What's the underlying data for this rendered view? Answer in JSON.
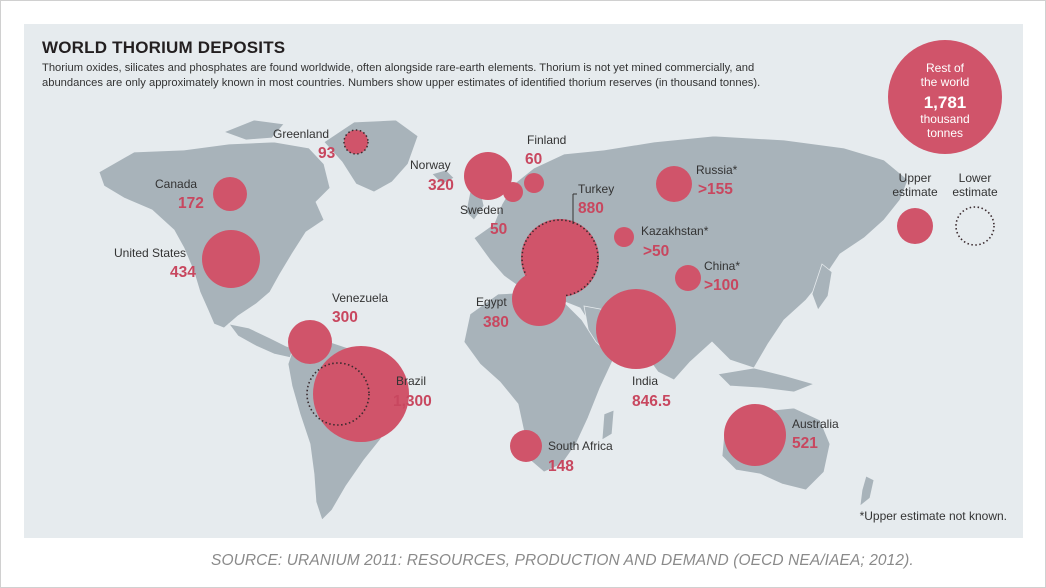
{
  "title": "WORLD THORIUM DEPOSITS",
  "description_lines": [
    "Thorium oxides, silicates and phosphates are found worldwide, often alongside rare-earth elements. Thorium is not yet mined commercially, and",
    "abundances are only approximately known in most countries. Numbers show upper estimates of identified thorium reserves (in thousand tonnes)."
  ],
  "colors": {
    "bubble": "#d0546a",
    "value_text": "#c8475f",
    "land": "#a8b3ba",
    "ocean": "#e6ebee"
  },
  "deposits": [
    {
      "id": "greenland",
      "name": "Greenland",
      "value_label": "93",
      "value": 93,
      "estimate": "lower"
    },
    {
      "id": "canada",
      "name": "Canada",
      "value_label": "172",
      "value": 172,
      "estimate": "upper"
    },
    {
      "id": "united-states",
      "name": "United States",
      "value_label": "434",
      "value": 434,
      "estimate": "upper"
    },
    {
      "id": "venezuela",
      "name": "Venezuela",
      "value_label": "300",
      "value": 300,
      "estimate": "upper"
    },
    {
      "id": "brazil",
      "name": "Brazil",
      "value_label": "1,300",
      "value": 1300,
      "estimate": "upper+lower"
    },
    {
      "id": "norway",
      "name": "Norway",
      "value_label": "320",
      "value": 320,
      "estimate": "upper"
    },
    {
      "id": "finland",
      "name": "Finland",
      "value_label": "60",
      "value": 60,
      "estimate": "upper"
    },
    {
      "id": "sweden",
      "name": "Sweden",
      "value_label": "50",
      "value": 50,
      "estimate": "upper"
    },
    {
      "id": "turkey",
      "name": "Turkey",
      "value_label": "880",
      "value": 880,
      "estimate": "upper+lower"
    },
    {
      "id": "egypt",
      "name": "Egypt",
      "value_label": "380",
      "value": 380,
      "estimate": "upper"
    },
    {
      "id": "russia",
      "name": "Russia*",
      "value_label": ">155",
      "value": 155,
      "estimate": "lower-bound"
    },
    {
      "id": "kazakhstan",
      "name": "Kazakhstan*",
      "value_label": ">50",
      "value": 50,
      "estimate": "lower-bound"
    },
    {
      "id": "china",
      "name": "China*",
      "value_label": ">100",
      "value": 100,
      "estimate": "lower-bound"
    },
    {
      "id": "india",
      "name": "India",
      "value_label": "846.5",
      "value": 846.5,
      "estimate": "upper"
    },
    {
      "id": "south-africa",
      "name": "South Africa",
      "value_label": "148",
      "value": 148,
      "estimate": "upper"
    },
    {
      "id": "australia",
      "name": "Australia",
      "value_label": "521",
      "value": 521,
      "estimate": "upper"
    }
  ],
  "rest_of_world": {
    "line1": "Rest of",
    "line2": "the world",
    "value": "1,781",
    "line4": "thousand",
    "line5": "tonnes"
  },
  "legend": {
    "upper_line1": "Upper",
    "upper_line2": "estimate",
    "lower_line1": "Lower",
    "lower_line2": "estimate"
  },
  "footnote": "*Upper estimate not known.",
  "source": "SOURCE: URANIUM 2011: RESOURCES, PRODUCTION AND DEMAND (OECD NEA/IAEA; 2012)."
}
